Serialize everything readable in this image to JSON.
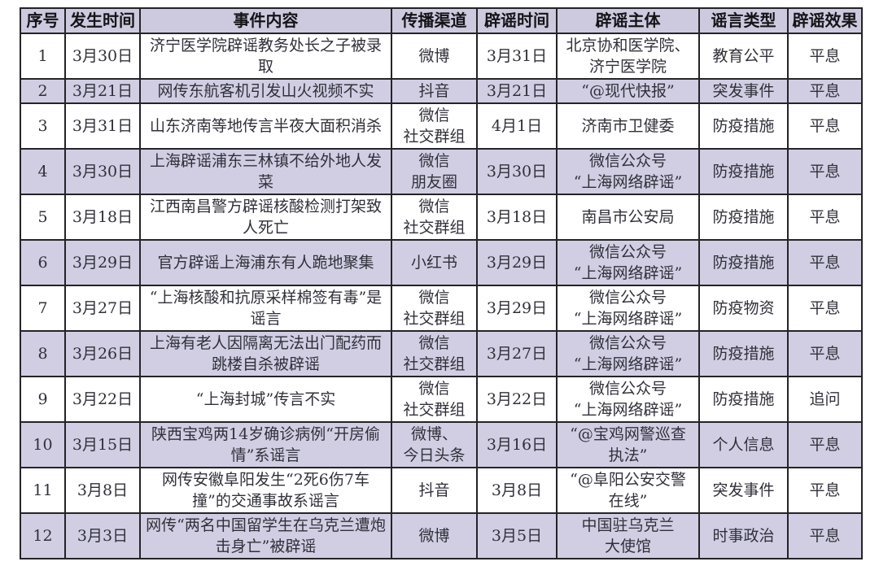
{
  "colors": {
    "stripe_lavender": "#d1cee3",
    "header_lavender": "#cdcadf",
    "border": "#242428",
    "page_background": "#ffffff",
    "body_text": "#30303a"
  },
  "table": {
    "columns": [
      {
        "key": "index",
        "label": "序号"
      },
      {
        "key": "occur_date",
        "label": "发生时间"
      },
      {
        "key": "event",
        "label": "事件内容"
      },
      {
        "key": "channel",
        "label": "传播渠道"
      },
      {
        "key": "refute_date",
        "label": "辟谣时间"
      },
      {
        "key": "refuter",
        "label": "辟谣主体"
      },
      {
        "key": "rumor_type",
        "label": "谣言类型"
      },
      {
        "key": "effect",
        "label": "辟谣效果"
      }
    ],
    "rows": [
      {
        "index": "1",
        "occur_date": "3月30日",
        "event": "济宁医学院辟谣教务处长之子被录取",
        "channel": "微博",
        "refute_date": "3月31日",
        "refuter": "北京协和医学院、\n济宁医学院",
        "rumor_type": "教育公平",
        "effect": "平息"
      },
      {
        "index": "2",
        "occur_date": "3月21日",
        "event": "网传东航客机引发山火视频不实",
        "channel": "抖音",
        "refute_date": "3月21日",
        "refuter": "“@现代快报”",
        "rumor_type": "突发事件",
        "effect": "平息"
      },
      {
        "index": "3",
        "occur_date": "3月31日",
        "event": "山东济南等地传言半夜大面积消杀",
        "channel": "微信\n社交群组",
        "refute_date": "4月1日",
        "refuter": "济南市卫健委",
        "rumor_type": "防疫措施",
        "effect": "平息"
      },
      {
        "index": "4",
        "occur_date": "3月30日",
        "event": "上海辟谣浦东三林镇不给外地人发菜",
        "channel": "微信\n朋友圈",
        "refute_date": "3月30日",
        "refuter": "微信公众号\n“上海网络辟谣”",
        "rumor_type": "防疫措施",
        "effect": "平息"
      },
      {
        "index": "5",
        "occur_date": "3月18日",
        "event": "江西南昌警方辟谣核酸检测打架致人死亡",
        "channel": "微信\n社交群组",
        "refute_date": "3月18日",
        "refuter": "南昌市公安局",
        "rumor_type": "防疫措施",
        "effect": "平息"
      },
      {
        "index": "6",
        "occur_date": "3月29日",
        "event": "官方辟谣上海浦东有人跪地聚集",
        "channel": "小红书",
        "refute_date": "3月29日",
        "refuter": "微信公众号\n“上海网络辟谣”",
        "rumor_type": "防疫措施",
        "effect": "平息"
      },
      {
        "index": "7",
        "occur_date": "3月27日",
        "event": "“上海核酸和抗原采样棉签有毒”是谣言",
        "channel": "微信\n社交群组",
        "refute_date": "3月29日",
        "refuter": "微信公众号\n“上海网络辟谣”",
        "rumor_type": "防疫物资",
        "effect": "平息"
      },
      {
        "index": "8",
        "occur_date": "3月26日",
        "event": "上海有老人因隔离无法出门配药而跳楼自杀被辟谣",
        "channel": "微信\n社交群组",
        "refute_date": "3月27日",
        "refuter": "微信公众号\n“上海网络辟谣”",
        "rumor_type": "防疫措施",
        "effect": "平息"
      },
      {
        "index": "9",
        "occur_date": "3月22日",
        "event": "“上海封城”传言不实",
        "channel": "微信\n社交群组",
        "refute_date": "3月22日",
        "refuter": "微信公众号\n“上海网络辟谣”",
        "rumor_type": "防疫措施",
        "effect": "追问"
      },
      {
        "index": "10",
        "occur_date": "3月15日",
        "event": "陕西宝鸡两14岁确诊病例“开房偷情”系谣言",
        "channel": "微博、\n今日头条",
        "refute_date": "3月16日",
        "refuter": "“@宝鸡网警巡查\n执法”",
        "rumor_type": "个人信息",
        "effect": "平息"
      },
      {
        "index": "11",
        "occur_date": "3月8日",
        "event": "网传安徽阜阳发生“2死6伤7车撞”的交通事故系谣言",
        "channel": "抖音",
        "refute_date": "3月8日",
        "refuter": "“@阜阳公安交警\n在线”",
        "rumor_type": "突发事件",
        "effect": "平息"
      },
      {
        "index": "12",
        "occur_date": "3月3日",
        "event": "网传“两名中国留学生在乌克兰遭炮击身亡”被辟谣",
        "channel": "微博",
        "refute_date": "3月5日",
        "refuter": "中国驻乌克兰\n大使馆",
        "rumor_type": "时事政治",
        "effect": "平息"
      }
    ]
  }
}
